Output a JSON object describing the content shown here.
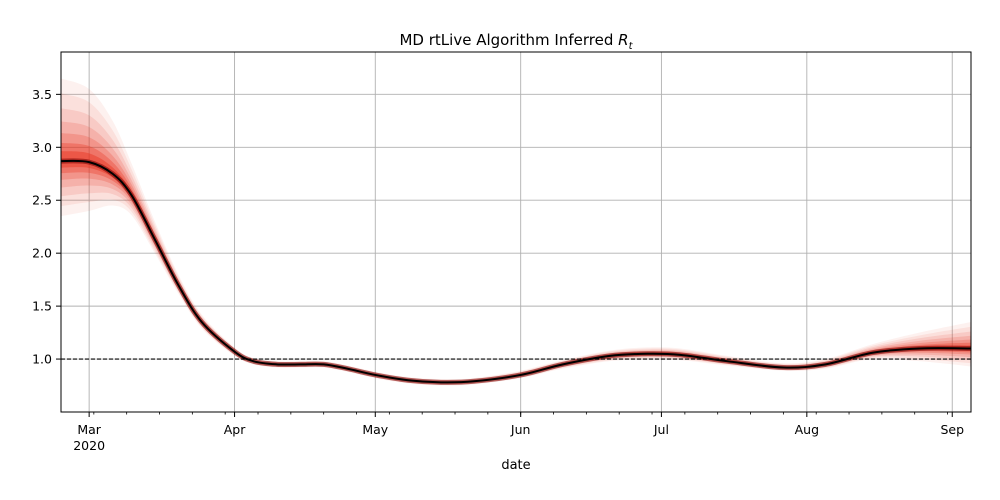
{
  "chart_data": {
    "type": "line",
    "title": "MD rtLive Algorithm Inferred",
    "title_symbol": "R",
    "title_subscript": "t",
    "xlabel": "date",
    "ylabel": "",
    "ylim": [
      0.5,
      3.9
    ],
    "xlim": [
      "2020-02-24",
      "2020-09-05"
    ],
    "grid": true,
    "x_ticks": [
      {
        "date": "2020-03-01",
        "label": "Mar",
        "sublabel": "2020"
      },
      {
        "date": "2020-04-01",
        "label": "Apr"
      },
      {
        "date": "2020-05-01",
        "label": "May"
      },
      {
        "date": "2020-06-01",
        "label": "Jun"
      },
      {
        "date": "2020-07-01",
        "label": "Jul"
      },
      {
        "date": "2020-08-01",
        "label": "Aug"
      },
      {
        "date": "2020-09-01",
        "label": "Sep"
      }
    ],
    "y_ticks": [
      1.0,
      1.5,
      2.0,
      2.5,
      3.0,
      3.5
    ],
    "y_tick_labels": [
      "1.0",
      "1.5",
      "2.0",
      "2.5",
      "3.0",
      "3.5"
    ],
    "reference_line": {
      "y": 1.0,
      "style": "dashed",
      "color": "#000000"
    },
    "series": [
      {
        "line_color": "#000000",
        "band_color": "#e8321f",
        "x": [
          "2020-02-24",
          "2020-03-01",
          "2020-03-06",
          "2020-03-10",
          "2020-03-15",
          "2020-03-20",
          "2020-03-25",
          "2020-04-01",
          "2020-04-05",
          "2020-04-10",
          "2020-04-15",
          "2020-04-20",
          "2020-04-25",
          "2020-05-01",
          "2020-05-08",
          "2020-05-15",
          "2020-05-22",
          "2020-06-01",
          "2020-06-10",
          "2020-06-20",
          "2020-06-28",
          "2020-07-05",
          "2020-07-15",
          "2020-07-27",
          "2020-08-05",
          "2020-08-15",
          "2020-08-25",
          "2020-09-05"
        ],
        "y": [
          2.87,
          2.86,
          2.75,
          2.55,
          2.13,
          1.7,
          1.35,
          1.07,
          0.98,
          0.95,
          0.95,
          0.95,
          0.91,
          0.85,
          0.8,
          0.78,
          0.79,
          0.85,
          0.95,
          1.03,
          1.05,
          1.04,
          0.98,
          0.92,
          0.95,
          1.06,
          1.1,
          1.1
        ],
        "ci_low": [
          2.35,
          2.4,
          2.45,
          2.36,
          2.0,
          1.62,
          1.29,
          1.03,
          0.95,
          0.92,
          0.92,
          0.92,
          0.88,
          0.82,
          0.77,
          0.75,
          0.76,
          0.82,
          0.91,
          0.98,
          1.0,
          0.99,
          0.94,
          0.89,
          0.91,
          1.0,
          0.98,
          0.93
        ],
        "ci_high": [
          3.65,
          3.55,
          3.25,
          2.85,
          2.3,
          1.8,
          1.42,
          1.11,
          1.01,
          0.98,
          0.98,
          0.98,
          0.94,
          0.88,
          0.83,
          0.81,
          0.82,
          0.89,
          0.99,
          1.08,
          1.11,
          1.1,
          1.03,
          0.96,
          1.0,
          1.14,
          1.25,
          1.35
        ]
      }
    ]
  }
}
